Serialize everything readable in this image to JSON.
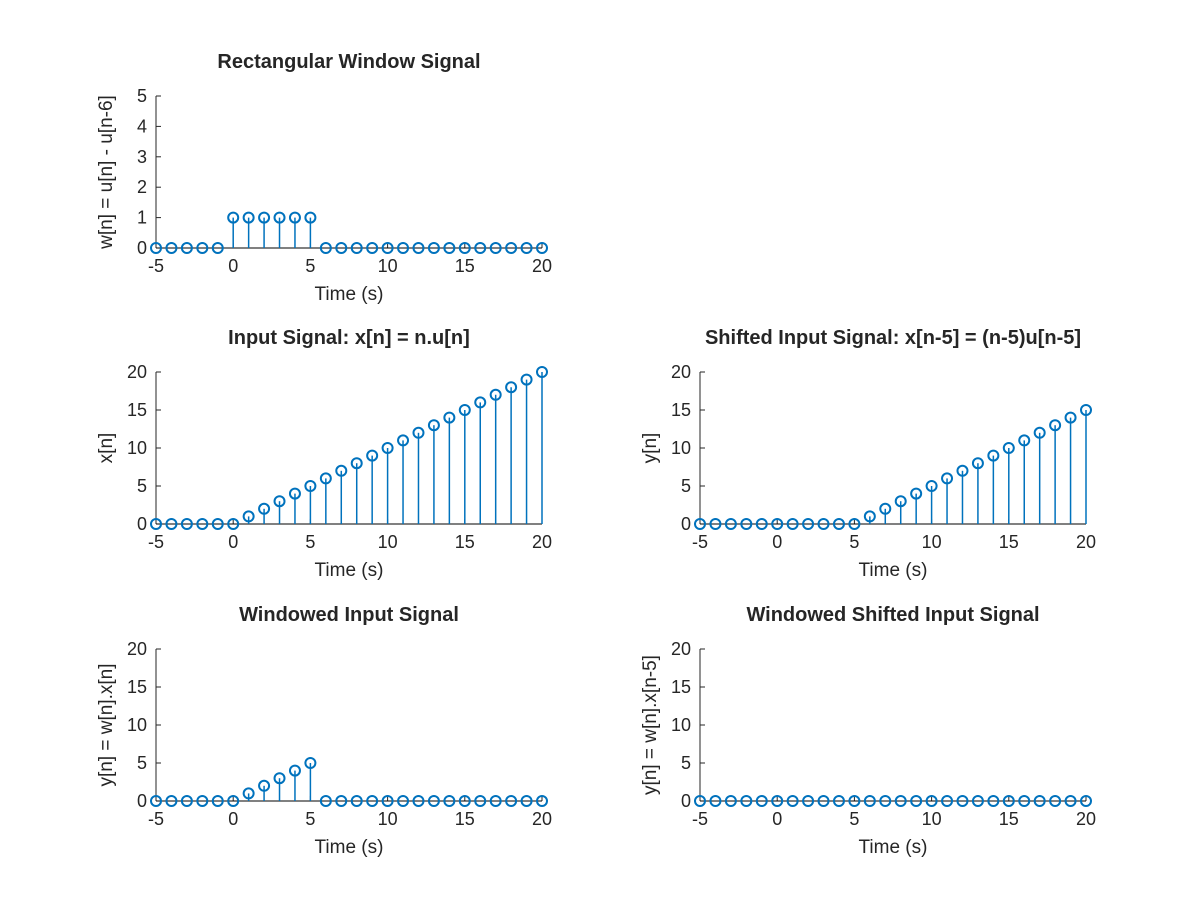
{
  "figure": {
    "background": "#ffffff",
    "stem_color": "#0072bd",
    "axis_color": "#262626"
  },
  "chart_data": [
    {
      "id": "p1",
      "type": "stem",
      "title": "Rectangular Window Signal",
      "xlabel": "Time (s)",
      "ylabel": "w[n] = u[n] - u[n-6]",
      "xlim": [
        -5,
        20
      ],
      "ylim": [
        0,
        5
      ],
      "xticks": [
        -5,
        0,
        5,
        10,
        15,
        20
      ],
      "yticks": [
        0,
        1,
        2,
        3,
        4,
        5
      ],
      "xtick_labels": [
        "-5",
        "0",
        "5",
        "10",
        "15",
        "20"
      ],
      "ytick_labels": [
        "0",
        "1",
        "2",
        "3",
        "4",
        "5"
      ],
      "x": [
        -5,
        -4,
        -3,
        -2,
        -1,
        0,
        1,
        2,
        3,
        4,
        5,
        6,
        7,
        8,
        9,
        10,
        11,
        12,
        13,
        14,
        15,
        16,
        17,
        18,
        19,
        20
      ],
      "y": [
        0,
        0,
        0,
        0,
        0,
        1,
        1,
        1,
        1,
        1,
        1,
        0,
        0,
        0,
        0,
        0,
        0,
        0,
        0,
        0,
        0,
        0,
        0,
        0,
        0,
        0
      ]
    },
    {
      "id": "p3",
      "type": "stem",
      "title": "Input Signal: x[n] = n.u[n]",
      "xlabel": "Time (s)",
      "ylabel": "x[n]",
      "xlim": [
        -5,
        20
      ],
      "ylim": [
        0,
        20
      ],
      "xticks": [
        -5,
        0,
        5,
        10,
        15,
        20
      ],
      "yticks": [
        0,
        5,
        10,
        15,
        20
      ],
      "xtick_labels": [
        "-5",
        "0",
        "5",
        "10",
        "15",
        "20"
      ],
      "ytick_labels": [
        "0",
        "5",
        "10",
        "15",
        "20"
      ],
      "x": [
        -5,
        -4,
        -3,
        -2,
        -1,
        0,
        1,
        2,
        3,
        4,
        5,
        6,
        7,
        8,
        9,
        10,
        11,
        12,
        13,
        14,
        15,
        16,
        17,
        18,
        19,
        20
      ],
      "y": [
        0,
        0,
        0,
        0,
        0,
        0,
        1,
        2,
        3,
        4,
        5,
        6,
        7,
        8,
        9,
        10,
        11,
        12,
        13,
        14,
        15,
        16,
        17,
        18,
        19,
        20
      ]
    },
    {
      "id": "p4",
      "type": "stem",
      "title": "Shifted Input Signal: x[n-5] = (n-5)u[n-5]",
      "xlabel": "Time (s)",
      "ylabel": "y[n]",
      "xlim": [
        -5,
        20
      ],
      "ylim": [
        0,
        20
      ],
      "xticks": [
        -5,
        0,
        5,
        10,
        15,
        20
      ],
      "yticks": [
        0,
        5,
        10,
        15,
        20
      ],
      "xtick_labels": [
        "-5",
        "0",
        "5",
        "10",
        "15",
        "20"
      ],
      "ytick_labels": [
        "0",
        "5",
        "10",
        "15",
        "20"
      ],
      "x": [
        -5,
        -4,
        -3,
        -2,
        -1,
        0,
        1,
        2,
        3,
        4,
        5,
        6,
        7,
        8,
        9,
        10,
        11,
        12,
        13,
        14,
        15,
        16,
        17,
        18,
        19,
        20
      ],
      "y": [
        0,
        0,
        0,
        0,
        0,
        0,
        0,
        0,
        0,
        0,
        0,
        1,
        2,
        3,
        4,
        5,
        6,
        7,
        8,
        9,
        10,
        11,
        12,
        13,
        14,
        15
      ]
    },
    {
      "id": "p5",
      "type": "stem",
      "title": "Windowed Input Signal",
      "xlabel": "Time (s)",
      "ylabel": "y[n] = w[n].x[n]",
      "xlim": [
        -5,
        20
      ],
      "ylim": [
        0,
        20
      ],
      "xticks": [
        -5,
        0,
        5,
        10,
        15,
        20
      ],
      "yticks": [
        0,
        5,
        10,
        15,
        20
      ],
      "xtick_labels": [
        "-5",
        "0",
        "5",
        "10",
        "15",
        "20"
      ],
      "ytick_labels": [
        "0",
        "5",
        "10",
        "15",
        "20"
      ],
      "x": [
        -5,
        -4,
        -3,
        -2,
        -1,
        0,
        1,
        2,
        3,
        4,
        5,
        6,
        7,
        8,
        9,
        10,
        11,
        12,
        13,
        14,
        15,
        16,
        17,
        18,
        19,
        20
      ],
      "y": [
        0,
        0,
        0,
        0,
        0,
        0,
        1,
        2,
        3,
        4,
        5,
        0,
        0,
        0,
        0,
        0,
        0,
        0,
        0,
        0,
        0,
        0,
        0,
        0,
        0,
        0
      ]
    },
    {
      "id": "p6",
      "type": "stem",
      "title": "Windowed Shifted Input Signal",
      "xlabel": "Time (s)",
      "ylabel": "y[n] = w[n].x[n-5]",
      "xlim": [
        -5,
        20
      ],
      "ylim": [
        0,
        20
      ],
      "xticks": [
        -5,
        0,
        5,
        10,
        15,
        20
      ],
      "yticks": [
        0,
        5,
        10,
        15,
        20
      ],
      "xtick_labels": [
        "-5",
        "0",
        "5",
        "10",
        "15",
        "20"
      ],
      "ytick_labels": [
        "0",
        "5",
        "10",
        "15",
        "20"
      ],
      "x": [
        -5,
        -4,
        -3,
        -2,
        -1,
        0,
        1,
        2,
        3,
        4,
        5,
        6,
        7,
        8,
        9,
        10,
        11,
        12,
        13,
        14,
        15,
        16,
        17,
        18,
        19,
        20
      ],
      "y": [
        0,
        0,
        0,
        0,
        0,
        0,
        0,
        0,
        0,
        0,
        0,
        0,
        0,
        0,
        0,
        0,
        0,
        0,
        0,
        0,
        0,
        0,
        0,
        0,
        0,
        0
      ]
    }
  ]
}
